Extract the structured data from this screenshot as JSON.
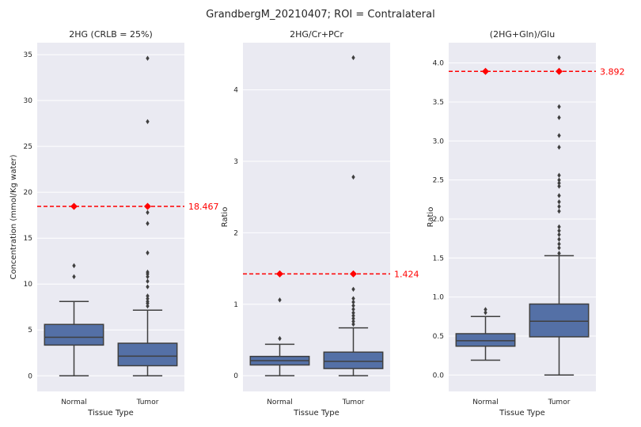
{
  "suptitle": "GrandbergM_20210407; ROI = Contralateral",
  "colors": {
    "plot_background": "#eaeaf2",
    "box_fill": "#5470a6",
    "box_line": "#3f3f3f",
    "threshold": "#ff0000",
    "grid": "#ffffff"
  },
  "chart_data": [
    {
      "type": "box",
      "title": "2HG (CRLB = 25%)",
      "xlabel": "Tissue Type",
      "ylabel": "Concentration (mmol/Kg water)",
      "ylim": [
        -1.7,
        36.3
      ],
      "yticks": [
        0,
        5,
        10,
        15,
        20,
        25,
        30,
        35
      ],
      "ytick_labels": [
        "0",
        "5",
        "10",
        "15",
        "20",
        "25",
        "30",
        "35"
      ],
      "grid": true,
      "categories": [
        "Normal",
        "Tumor"
      ],
      "boxes": [
        {
          "category": "Normal",
          "whislo": 0.0,
          "q1": 3.35,
          "med": 4.2,
          "q3": 5.6,
          "whishi": 8.1,
          "fliers": [
            10.8,
            12.0
          ]
        },
        {
          "category": "Tumor",
          "whislo": 0.0,
          "q1": 1.1,
          "med": 2.15,
          "q3": 3.55,
          "whishi": 7.15,
          "fliers": [
            7.6,
            7.9,
            8.1,
            8.4,
            8.7,
            9.7,
            10.3,
            10.8,
            11.1,
            11.3,
            13.4,
            16.6,
            17.8,
            27.7,
            34.6
          ]
        }
      ],
      "threshold": {
        "value": 18.467,
        "label": "18.467"
      }
    },
    {
      "type": "box",
      "title": "2HG/Cr+PCr",
      "xlabel": "Tissue Type",
      "ylabel": "Ratio",
      "ylim": [
        -0.22,
        4.66
      ],
      "yticks": [
        0,
        1,
        2,
        3,
        4
      ],
      "ytick_labels": [
        "0",
        "1",
        "2",
        "3",
        "4"
      ],
      "grid": true,
      "categories": [
        "Normal",
        "Tumor"
      ],
      "boxes": [
        {
          "category": "Normal",
          "whislo": 0.0,
          "q1": 0.15,
          "med": 0.21,
          "q3": 0.27,
          "whishi": 0.44,
          "fliers": [
            0.52,
            1.06
          ]
        },
        {
          "category": "Tumor",
          "whislo": 0.0,
          "q1": 0.1,
          "med": 0.2,
          "q3": 0.33,
          "whishi": 0.67,
          "fliers": [
            0.72,
            0.76,
            0.8,
            0.84,
            0.88,
            0.93,
            0.98,
            1.03,
            1.08,
            1.21,
            2.78,
            4.45
          ]
        }
      ],
      "threshold": {
        "value": 1.424,
        "label": "1.424"
      }
    },
    {
      "type": "box",
      "title": "(2HG+Gln)/Glu",
      "xlabel": "Tissue Type",
      "ylabel": "Ratio",
      "ylim": [
        -0.21,
        4.26
      ],
      "yticks": [
        0.0,
        0.5,
        1.0,
        1.5,
        2.0,
        2.5,
        3.0,
        3.5,
        4.0
      ],
      "ytick_labels": [
        "0.0",
        "0.5",
        "1.0",
        "1.5",
        "2.0",
        "2.5",
        "3.0",
        "3.5",
        "4.0"
      ],
      "grid": true,
      "categories": [
        "Normal",
        "Tumor"
      ],
      "boxes": [
        {
          "category": "Normal",
          "whislo": 0.19,
          "q1": 0.37,
          "med": 0.44,
          "q3": 0.53,
          "whishi": 0.75,
          "fliers": [
            0.8,
            0.84
          ]
        },
        {
          "category": "Tumor",
          "whislo": 0.0,
          "q1": 0.49,
          "med": 0.69,
          "q3": 0.91,
          "whishi": 1.53,
          "fliers": [
            1.56,
            1.63,
            1.68,
            1.74,
            1.8,
            1.85,
            1.9,
            2.1,
            2.16,
            2.22,
            2.3,
            2.42,
            2.46,
            2.5,
            2.56,
            2.92,
            3.07,
            3.3,
            3.44,
            4.07
          ]
        }
      ],
      "threshold": {
        "value": 3.892,
        "label": "3.892"
      }
    }
  ]
}
